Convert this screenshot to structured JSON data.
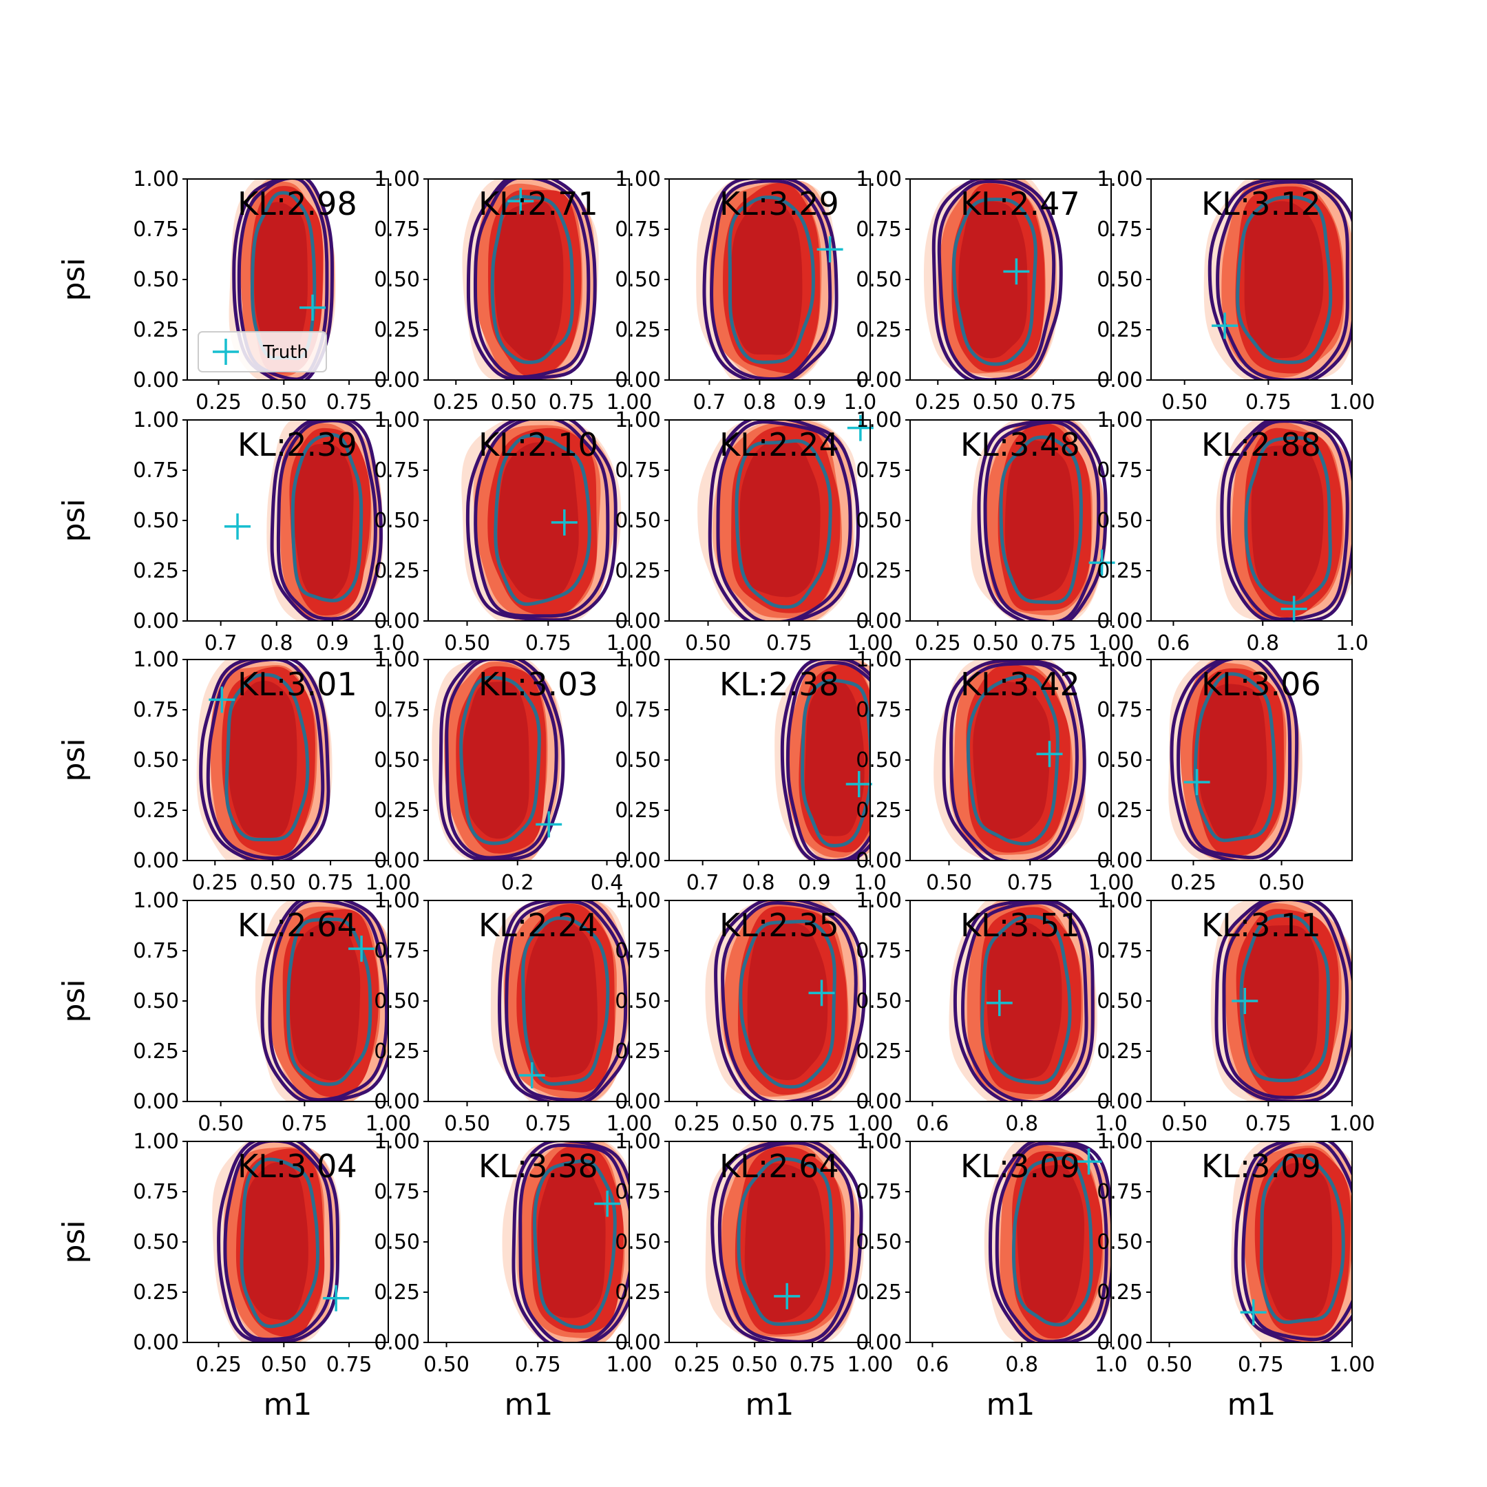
{
  "chart_data": {
    "type": "contour-grid",
    "rows": 5,
    "cols": 5,
    "xlabel": "m1",
    "ylabel": "psi",
    "ylim": [
      0,
      1
    ],
    "y_ticks": [
      "0.00",
      "0.25",
      "0.50",
      "0.75",
      "1.00"
    ],
    "legend": {
      "label": "Truth",
      "panel": 0,
      "placement": "lower left"
    },
    "colors": {
      "fill_levels": [
        "#fde0d2",
        "#fcae91",
        "#f26b4c",
        "#dc2a22",
        "#c41b1d"
      ],
      "outer_contour": "#3b0f6f",
      "inner_contour": "#2a6f8f",
      "truth_marker": "#17becf"
    },
    "panels": [
      {
        "kl": "KL:2.98",
        "xlim": [
          0.13,
          0.9
        ],
        "xticks": [
          0.25,
          0.5,
          0.75
        ],
        "xtick_labels": [
          "0.25",
          "0.50",
          "0.75"
        ],
        "center": [
          0.5,
          0.5
        ],
        "rx": 0.165,
        "truth": [
          0.61,
          0.36
        ]
      },
      {
        "kl": "KL:2.71",
        "xlim": [
          0.13,
          1.0
        ],
        "xticks": [
          0.25,
          0.5,
          0.75,
          1.0
        ],
        "xtick_labels": [
          "0.25",
          "0.50",
          "0.75",
          "1.00"
        ],
        "center": [
          0.58,
          0.5
        ],
        "rx": 0.24,
        "truth": [
          0.53,
          0.89
        ]
      },
      {
        "kl": "KL:3.29",
        "xlim": [
          0.62,
          1.02
        ],
        "xticks": [
          0.7,
          0.8,
          0.9,
          1.0
        ],
        "xtick_labels": [
          "0.7",
          "0.8",
          "0.9",
          "1.0"
        ],
        "center": [
          0.82,
          0.5
        ],
        "rx": 0.115,
        "truth": [
          0.94,
          0.65
        ]
      },
      {
        "kl": "KL:2.47",
        "xlim": [
          0.13,
          1.0
        ],
        "xticks": [
          0.25,
          0.5,
          0.75
        ],
        "xtick_labels": [
          "0.25",
          "0.50",
          "0.75"
        ],
        "center": [
          0.5,
          0.5
        ],
        "rx": 0.24,
        "truth": [
          0.59,
          0.54
        ]
      },
      {
        "kl": "KL:3.12",
        "xlim": [
          0.4,
          1.0
        ],
        "xticks": [
          0.5,
          0.75,
          1.0
        ],
        "xtick_labels": [
          "0.50",
          "0.75",
          "1.00"
        ],
        "center": [
          0.8,
          0.5
        ],
        "rx": 0.19,
        "truth": [
          0.62,
          0.27
        ]
      },
      {
        "kl": "KL:2.39",
        "xlim": [
          0.64,
          1.0
        ],
        "xticks": [
          0.7,
          0.8,
          0.9,
          1.0
        ],
        "xtick_labels": [
          "0.7",
          "0.8",
          "0.9",
          "1.0"
        ],
        "center": [
          0.89,
          0.5
        ],
        "rx": 0.085,
        "truth": [
          0.73,
          0.47
        ]
      },
      {
        "kl": "KL:2.10",
        "xlim": [
          0.38,
          1.0
        ],
        "xticks": [
          0.5,
          0.75,
          1.0
        ],
        "xtick_labels": [
          "0.50",
          "0.75",
          "1.00"
        ],
        "center": [
          0.73,
          0.5
        ],
        "rx": 0.2,
        "truth": [
          0.8,
          0.49
        ]
      },
      {
        "kl": "KL:2.24",
        "xlim": [
          0.38,
          1.0
        ],
        "xticks": [
          0.5,
          0.75,
          1.0
        ],
        "xtick_labels": [
          "0.50",
          "0.75",
          "1.00"
        ],
        "center": [
          0.73,
          0.5
        ],
        "rx": 0.2,
        "truth": [
          0.97,
          0.96
        ]
      },
      {
        "kl": "KL:3.48",
        "xlim": [
          0.13,
          1.0
        ],
        "xticks": [
          0.25,
          0.5,
          0.75,
          1.0
        ],
        "xtick_labels": [
          "0.25",
          "0.50",
          "0.75",
          "1.00"
        ],
        "center": [
          0.7,
          0.5
        ],
        "rx": 0.24,
        "truth": [
          0.96,
          0.29
        ]
      },
      {
        "kl": "KL:2.88",
        "xlim": [
          0.55,
          1.0
        ],
        "xticks": [
          0.6,
          0.8,
          1.0
        ],
        "xtick_labels": [
          "0.6",
          "0.8",
          "1.0"
        ],
        "center": [
          0.86,
          0.5
        ],
        "rx": 0.13,
        "truth": [
          0.87,
          0.06
        ]
      },
      {
        "kl": "KL:3.01",
        "xlim": [
          0.13,
          1.0
        ],
        "xticks": [
          0.25,
          0.5,
          0.75,
          1.0
        ],
        "xtick_labels": [
          "0.25",
          "0.50",
          "0.75",
          "1.00"
        ],
        "center": [
          0.47,
          0.5
        ],
        "rx": 0.24,
        "truth": [
          0.28,
          0.8
        ]
      },
      {
        "kl": "KL:3.03",
        "xlim": [
          0.0,
          0.45
        ],
        "xticks": [
          0.2,
          0.4
        ],
        "xtick_labels": [
          "0.2",
          "0.4"
        ],
        "center": [
          0.16,
          0.5
        ],
        "rx": 0.12,
        "truth": [
          0.27,
          0.18
        ]
      },
      {
        "kl": "KL:2.38",
        "xlim": [
          0.64,
          1.0
        ],
        "xticks": [
          0.7,
          0.8,
          0.9,
          1.0
        ],
        "xtick_labels": [
          "0.7",
          "0.8",
          "0.9",
          "1.0"
        ],
        "center": [
          0.94,
          0.5
        ],
        "rx": 0.085,
        "truth": [
          0.98,
          0.38
        ]
      },
      {
        "kl": "KL:3.42",
        "xlim": [
          0.38,
          1.0
        ],
        "xticks": [
          0.5,
          0.75,
          1.0
        ],
        "xtick_labels": [
          "0.50",
          "0.75",
          "1.00"
        ],
        "center": [
          0.7,
          0.5
        ],
        "rx": 0.19,
        "truth": [
          0.81,
          0.53
        ]
      },
      {
        "kl": "KL:3.06",
        "xlim": [
          0.13,
          0.7
        ],
        "xticks": [
          0.25,
          0.5
        ],
        "xtick_labels": [
          "0.25",
          "0.50"
        ],
        "center": [
          0.37,
          0.5
        ],
        "rx": 0.155,
        "truth": [
          0.26,
          0.39
        ]
      },
      {
        "kl": "KL:2.64",
        "xlim": [
          0.4,
          1.0
        ],
        "xticks": [
          0.5,
          0.75,
          1.0
        ],
        "xtick_labels": [
          "0.50",
          "0.75",
          "1.00"
        ],
        "center": [
          0.82,
          0.5
        ],
        "rx": 0.17,
        "truth": [
          0.92,
          0.76
        ]
      },
      {
        "kl": "KL:2.24",
        "xlim": [
          0.38,
          1.0
        ],
        "xticks": [
          0.5,
          0.75,
          1.0
        ],
        "xtick_labels": [
          "0.50",
          "0.75",
          "1.00"
        ],
        "center": [
          0.8,
          0.5
        ],
        "rx": 0.18,
        "truth": [
          0.7,
          0.13
        ]
      },
      {
        "kl": "KL:2.35",
        "xlim": [
          0.13,
          1.0
        ],
        "xticks": [
          0.25,
          0.5,
          0.75,
          1.0
        ],
        "xtick_labels": [
          "0.25",
          "0.50",
          "0.75",
          "1.00"
        ],
        "center": [
          0.65,
          0.5
        ],
        "rx": 0.28,
        "truth": [
          0.79,
          0.54
        ]
      },
      {
        "kl": "KL:3.51",
        "xlim": [
          0.55,
          1.0
        ],
        "xticks": [
          0.6,
          0.8,
          1.0
        ],
        "xtick_labels": [
          "0.6",
          "0.8",
          "1.0"
        ],
        "center": [
          0.81,
          0.5
        ],
        "rx": 0.135,
        "truth": [
          0.75,
          0.49
        ]
      },
      {
        "kl": "KL:3.11",
        "xlim": [
          0.4,
          1.0
        ],
        "xticks": [
          0.5,
          0.75,
          1.0
        ],
        "xtick_labels": [
          "0.50",
          "0.75",
          "1.00"
        ],
        "center": [
          0.8,
          0.5
        ],
        "rx": 0.18,
        "truth": [
          0.68,
          0.5
        ]
      },
      {
        "kl": "KL:3.04",
        "xlim": [
          0.13,
          0.9
        ],
        "xticks": [
          0.25,
          0.5,
          0.75
        ],
        "xtick_labels": [
          "0.25",
          "0.50",
          "0.75"
        ],
        "center": [
          0.48,
          0.5
        ],
        "rx": 0.2,
        "truth": [
          0.7,
          0.22
        ]
      },
      {
        "kl": "KL:3.38",
        "xlim": [
          0.45,
          1.0
        ],
        "xticks": [
          0.5,
          0.75,
          1.0
        ],
        "xtick_labels": [
          "0.50",
          "0.75",
          "1.00"
        ],
        "center": [
          0.85,
          0.5
        ],
        "rx": 0.15,
        "truth": [
          0.94,
          0.69
        ]
      },
      {
        "kl": "KL:2.64",
        "xlim": [
          0.13,
          1.0
        ],
        "xticks": [
          0.25,
          0.5,
          0.75,
          1.0
        ],
        "xtick_labels": [
          "0.25",
          "0.50",
          "0.75",
          "1.00"
        ],
        "center": [
          0.64,
          0.5
        ],
        "rx": 0.28,
        "truth": [
          0.64,
          0.23
        ]
      },
      {
        "kl": "KL:3.09",
        "xlim": [
          0.55,
          1.0
        ],
        "xticks": [
          0.6,
          0.8,
          1.0
        ],
        "xtick_labels": [
          "0.6",
          "0.8",
          "1.0"
        ],
        "center": [
          0.87,
          0.5
        ],
        "rx": 0.12,
        "truth": [
          0.95,
          0.9
        ]
      },
      {
        "kl": "KL:3.09",
        "xlim": [
          0.45,
          1.0
        ],
        "xticks": [
          0.5,
          0.75,
          1.0
        ],
        "xtick_labels": [
          "0.50",
          "0.75",
          "1.00"
        ],
        "center": [
          0.86,
          0.5
        ],
        "rx": 0.155,
        "truth": [
          0.73,
          0.15
        ]
      }
    ]
  }
}
